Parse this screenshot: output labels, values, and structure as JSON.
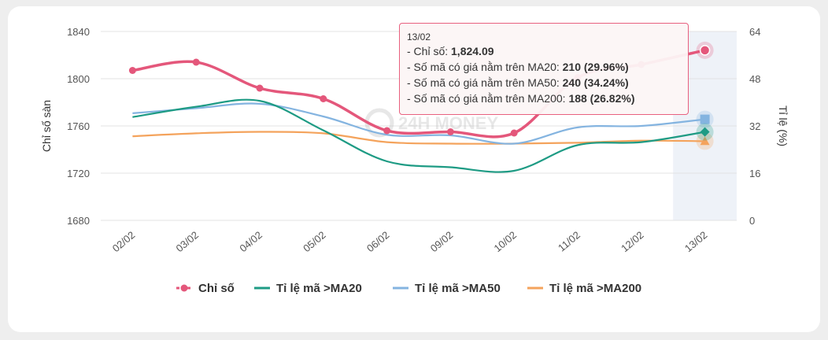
{
  "chart_data": {
    "type": "line",
    "categories": [
      "02/02",
      "03/02",
      "04/02",
      "05/02",
      "06/02",
      "09/02",
      "10/02",
      "11/02",
      "12/02",
      "13/02"
    ],
    "y_left": {
      "label": "Chỉ số sàn",
      "ylim": [
        1680,
        1840
      ],
      "ticks": [
        1680,
        1720,
        1760,
        1800,
        1840
      ]
    },
    "y_right": {
      "label": "Tỉ lệ (%)",
      "ylim": [
        0,
        64
      ],
      "ticks": [
        0,
        16,
        32,
        48,
        64
      ]
    },
    "series": [
      {
        "name": "Chỉ số",
        "axis": "left",
        "color": "#e4577b",
        "marker": "circle",
        "values": [
          1807,
          1814,
          1792,
          1783,
          1756,
          1755,
          1754,
          1801,
          1812,
          1824.09
        ]
      },
      {
        "name": "Tỉ lệ mã >MA20",
        "axis": "right",
        "color": "#1e9b84",
        "marker": "diamond",
        "values": [
          35,
          38.5,
          40.5,
          30.5,
          20,
          18,
          16.8,
          25.5,
          26.5,
          29.96
        ]
      },
      {
        "name": "Tỉ lệ mã >MA50",
        "axis": "right",
        "color": "#84b4e0",
        "marker": "square",
        "values": [
          36.3,
          38,
          39.5,
          35.2,
          29,
          28.8,
          26,
          31.5,
          32,
          34.24
        ]
      },
      {
        "name": "Tỉ lệ mã >MA200",
        "axis": "right",
        "color": "#f4a35c",
        "marker": "triangle",
        "values": [
          28.5,
          29.5,
          30,
          29.5,
          26.5,
          26,
          26,
          26.3,
          27,
          26.82
        ]
      }
    ],
    "highlight_category": "13/02",
    "grid": true,
    "legend_position": "bottom"
  },
  "tooltip": {
    "date": "13/02",
    "rows": [
      {
        "label": "- Chỉ số: ",
        "value": "1,824.09"
      },
      {
        "label": "- Số mã có giá nằm trên MA20: ",
        "value": "210 (29.96%)"
      },
      {
        "label": "- Số mã có giá nằm trên MA50: ",
        "value": "240 (34.24%)"
      },
      {
        "label": "- Số mã có giá nằm trên MA200: ",
        "value": "188 (26.82%)"
      }
    ]
  },
  "watermark": "24H MONEY"
}
